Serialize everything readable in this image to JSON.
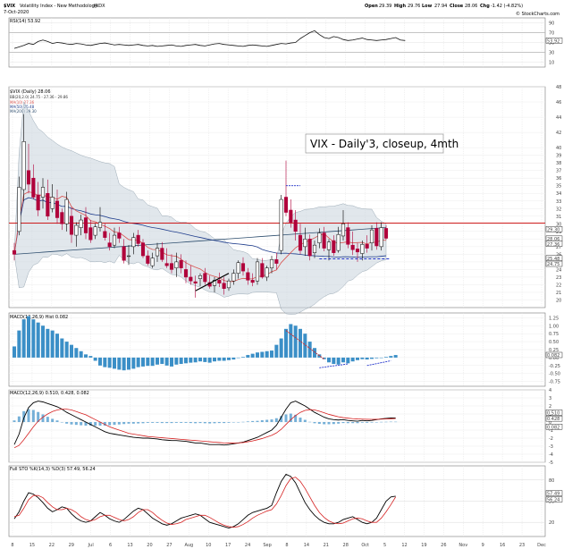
{
  "header": {
    "symbol": "$VIX",
    "name": "Volatility Index - New Methodology",
    "exchange": "INDX",
    "date": "7-Oct-2020",
    "open_label": "Open",
    "open": "29.39",
    "high_label": "High",
    "high": "29.76",
    "low_label": "Low",
    "low": "27.94",
    "close_label": "Close",
    "close": "28.06",
    "chg_label": "Chg",
    "chg": "-1.42 (-4.82%)",
    "copyright": "© StockCharts.com"
  },
  "rsi_panel": {
    "label": "RSI(14) 53.92",
    "ticks": [
      "90",
      "70",
      "50",
      "30",
      "10"
    ],
    "value_box": "53.92"
  },
  "price_panel": {
    "legend_title": "$VIX (Daily) 28.06",
    "legend_bb": "BB(20,2.0) 24.75 - 27.36 - 29.86",
    "legend_ma10": "MA(10) 27.36",
    "legend_ma50": "MA(50) 25.48",
    "legend_ma200": "MA(200) 29.30",
    "annotation": "VIX - Daily'3, closeup, 4mth",
    "price_boxes": [
      "29.30",
      "28.06",
      "27.36",
      "25.48",
      "24.75"
    ],
    "y_ticks": [
      "48",
      "46",
      "44",
      "42",
      "40",
      "39",
      "38",
      "37",
      "36",
      "35",
      "34",
      "33",
      "32",
      "31",
      "30",
      "29",
      "28",
      "27",
      "26",
      "25",
      "24",
      "23",
      "22",
      "21",
      "20"
    ]
  },
  "macd_hist_panel": {
    "label": "MACD(12,26,9) Hist 0.082",
    "ticks": [
      "1.25",
      "1.00",
      "0.75",
      "0.50",
      "0.25",
      "0.00",
      "-0.25",
      "-0.50",
      "-0.75"
    ],
    "value_box": "0.082"
  },
  "macd_panel": {
    "label": "MACD(12,26,9) 0.510, 0.428, 0.082",
    "ticks": [
      "4",
      "3",
      "2",
      "1",
      "0",
      "-1",
      "-2",
      "-3",
      "-4",
      "-5"
    ],
    "value_boxes": [
      "0.510",
      "0.428",
      "0.082"
    ]
  },
  "sto_panel": {
    "label": "Full STO %K(14,3) %D(3) 57.49, 56.24",
    "ticks": [
      "80",
      "50",
      "20"
    ],
    "value_boxes": [
      "57.49",
      "56.24"
    ]
  },
  "x_axis": {
    "labels": [
      "8",
      "15",
      "22",
      "29",
      "Jul",
      "6",
      "13",
      "20",
      "27",
      "Aug",
      "10",
      "17",
      "24",
      "Sep",
      "8",
      "14",
      "21",
      "28",
      "Oct",
      "5",
      "12",
      "19",
      "26",
      "Nov",
      "9",
      "16",
      "23",
      "Dec"
    ]
  },
  "colors": {
    "up": "#000000",
    "down": "#b0003a",
    "bollinger_fill": "#c9d4dd",
    "ma10": "#d9534f",
    "ma50": "#1e3c8c",
    "ma200": "#2f4f6f",
    "horizontal_line": "#cc0000",
    "macd_hist": "#3b8fc7",
    "macd_signal": "#d62222",
    "support_line": "#2233cc"
  },
  "chart_data": [
    {
      "type": "line",
      "name": "RSI(14)",
      "ylim": [
        0,
        100
      ],
      "values": [
        38,
        41,
        44,
        48,
        46,
        52,
        55,
        52,
        48,
        50,
        49,
        47,
        46,
        48,
        47,
        45,
        44,
        46,
        48,
        49,
        47,
        45,
        46,
        45,
        44,
        45,
        46,
        44,
        43,
        44,
        42,
        43,
        44,
        45,
        43,
        42,
        44,
        45,
        46,
        44,
        43,
        45,
        47,
        48,
        46,
        45,
        44,
        43,
        42,
        44,
        45,
        44,
        43,
        42,
        44,
        46,
        48,
        47,
        49,
        50,
        58,
        64,
        70,
        74,
        66,
        60,
        58,
        62,
        60,
        56,
        54,
        55,
        57,
        59,
        56,
        55,
        54,
        55,
        56,
        58,
        60,
        55,
        54
      ]
    },
    {
      "type": "candlestick",
      "name": "$VIX (Daily)",
      "ylim": [
        19,
        48
      ],
      "candles": [
        {
          "o": 26.5,
          "h": 27.5,
          "l": 25.2,
          "c": 26.0
        },
        {
          "o": 29.0,
          "h": 36.2,
          "l": 28.5,
          "c": 34.8
        },
        {
          "o": 34.5,
          "h": 44.4,
          "l": 33.0,
          "c": 40.8
        },
        {
          "o": 37.0,
          "h": 40.5,
          "l": 34.0,
          "c": 35.2
        },
        {
          "o": 36.0,
          "h": 37.8,
          "l": 33.2,
          "c": 33.5
        },
        {
          "o": 33.8,
          "h": 35.5,
          "l": 31.0,
          "c": 31.8
        },
        {
          "o": 33.5,
          "h": 36.0,
          "l": 32.0,
          "c": 34.8
        },
        {
          "o": 34.0,
          "h": 35.8,
          "l": 30.5,
          "c": 31.0
        },
        {
          "o": 32.0,
          "h": 35.2,
          "l": 31.5,
          "c": 33.5
        },
        {
          "o": 33.0,
          "h": 34.5,
          "l": 30.0,
          "c": 30.8
        },
        {
          "o": 31.5,
          "h": 32.0,
          "l": 29.2,
          "c": 30.0
        },
        {
          "o": 30.0,
          "h": 34.2,
          "l": 29.0,
          "c": 33.2
        },
        {
          "o": 31.0,
          "h": 32.2,
          "l": 27.5,
          "c": 28.6
        },
        {
          "o": 28.5,
          "h": 30.2,
          "l": 27.0,
          "c": 29.8
        },
        {
          "o": 29.5,
          "h": 31.2,
          "l": 28.5,
          "c": 30.5
        },
        {
          "o": 30.8,
          "h": 32.2,
          "l": 28.0,
          "c": 28.8
        },
        {
          "o": 29.5,
          "h": 30.5,
          "l": 27.5,
          "c": 27.9
        },
        {
          "o": 28.5,
          "h": 30.0,
          "l": 28.0,
          "c": 29.6
        },
        {
          "o": 29.5,
          "h": 32.2,
          "l": 29.0,
          "c": 30.2
        },
        {
          "o": 29.0,
          "h": 30.0,
          "l": 27.8,
          "c": 28.2
        },
        {
          "o": 27.5,
          "h": 28.8,
          "l": 26.5,
          "c": 27.0
        },
        {
          "o": 27.2,
          "h": 29.5,
          "l": 26.8,
          "c": 28.5
        },
        {
          "o": 28.8,
          "h": 29.6,
          "l": 27.5,
          "c": 28.1
        },
        {
          "o": 27.0,
          "h": 28.0,
          "l": 24.8,
          "c": 25.2
        },
        {
          "o": 25.8,
          "h": 27.2,
          "l": 24.6,
          "c": 25.8
        },
        {
          "o": 27.0,
          "h": 28.8,
          "l": 26.0,
          "c": 28.2
        },
        {
          "o": 28.5,
          "h": 29.2,
          "l": 27.0,
          "c": 27.4
        },
        {
          "o": 27.5,
          "h": 28.0,
          "l": 25.5,
          "c": 25.8
        },
        {
          "o": 25.8,
          "h": 26.5,
          "l": 24.5,
          "c": 24.8
        },
        {
          "o": 24.5,
          "h": 26.2,
          "l": 24.2,
          "c": 25.5
        },
        {
          "o": 25.8,
          "h": 27.5,
          "l": 25.0,
          "c": 26.8
        },
        {
          "o": 26.8,
          "h": 27.6,
          "l": 25.0,
          "c": 25.3
        },
        {
          "o": 24.8,
          "h": 26.8,
          "l": 24.2,
          "c": 24.5
        },
        {
          "o": 24.8,
          "h": 26.0,
          "l": 23.5,
          "c": 24.0
        },
        {
          "o": 24.2,
          "h": 26.2,
          "l": 23.0,
          "c": 25.0
        },
        {
          "o": 25.2,
          "h": 26.0,
          "l": 23.5,
          "c": 24.2
        },
        {
          "o": 24.0,
          "h": 25.2,
          "l": 22.2,
          "c": 23.0
        },
        {
          "o": 23.0,
          "h": 24.5,
          "l": 22.0,
          "c": 22.5
        },
        {
          "o": 22.4,
          "h": 23.2,
          "l": 20.3,
          "c": 22.2
        },
        {
          "o": 22.8,
          "h": 23.5,
          "l": 21.8,
          "c": 23.2
        },
        {
          "o": 23.5,
          "h": 24.2,
          "l": 22.0,
          "c": 22.4
        },
        {
          "o": 22.3,
          "h": 23.2,
          "l": 21.5,
          "c": 21.8
        },
        {
          "o": 21.9,
          "h": 23.0,
          "l": 21.0,
          "c": 22.6
        },
        {
          "o": 22.6,
          "h": 23.6,
          "l": 21.7,
          "c": 22.2
        },
        {
          "o": 22.2,
          "h": 23.0,
          "l": 20.7,
          "c": 21.5
        },
        {
          "o": 21.6,
          "h": 22.8,
          "l": 21.2,
          "c": 22.5
        },
        {
          "o": 22.5,
          "h": 24.0,
          "l": 22.0,
          "c": 23.5
        },
        {
          "o": 23.5,
          "h": 25.2,
          "l": 22.8,
          "c": 24.9
        },
        {
          "o": 24.8,
          "h": 25.6,
          "l": 23.2,
          "c": 23.8
        },
        {
          "o": 23.6,
          "h": 24.2,
          "l": 22.0,
          "c": 22.6
        },
        {
          "o": 22.6,
          "h": 23.5,
          "l": 21.8,
          "c": 22.3
        },
        {
          "o": 22.5,
          "h": 25.5,
          "l": 22.0,
          "c": 25.0
        },
        {
          "o": 24.8,
          "h": 25.5,
          "l": 22.8,
          "c": 23.0
        },
        {
          "o": 23.0,
          "h": 24.5,
          "l": 22.5,
          "c": 24.2
        },
        {
          "o": 24.2,
          "h": 25.8,
          "l": 23.5,
          "c": 25.3
        },
        {
          "o": 25.3,
          "h": 26.2,
          "l": 24.0,
          "c": 24.8
        },
        {
          "o": 26.5,
          "h": 33.8,
          "l": 26.0,
          "c": 33.2
        },
        {
          "o": 33.5,
          "h": 38.3,
          "l": 31.0,
          "c": 31.5
        },
        {
          "o": 31.8,
          "h": 33.2,
          "l": 29.5,
          "c": 30.2
        },
        {
          "o": 30.5,
          "h": 31.8,
          "l": 27.8,
          "c": 29.0
        },
        {
          "o": 28.5,
          "h": 30.0,
          "l": 26.0,
          "c": 26.5
        },
        {
          "o": 27.0,
          "h": 29.5,
          "l": 25.8,
          "c": 28.0
        },
        {
          "o": 28.0,
          "h": 28.6,
          "l": 25.2,
          "c": 25.8
        },
        {
          "o": 26.2,
          "h": 27.8,
          "l": 25.5,
          "c": 27.2
        },
        {
          "o": 27.5,
          "h": 29.4,
          "l": 26.8,
          "c": 28.8
        },
        {
          "o": 28.8,
          "h": 29.6,
          "l": 26.4,
          "c": 26.8
        },
        {
          "o": 26.6,
          "h": 28.0,
          "l": 25.2,
          "c": 27.6
        },
        {
          "o": 27.8,
          "h": 28.5,
          "l": 25.8,
          "c": 26.2
        },
        {
          "o": 26.5,
          "h": 29.6,
          "l": 26.2,
          "c": 28.6
        },
        {
          "o": 28.4,
          "h": 31.8,
          "l": 27.8,
          "c": 30.0
        },
        {
          "o": 29.5,
          "h": 30.2,
          "l": 26.8,
          "c": 27.3
        },
        {
          "o": 27.2,
          "h": 29.0,
          "l": 25.9,
          "c": 26.6
        },
        {
          "o": 26.7,
          "h": 27.5,
          "l": 25.0,
          "c": 26.3
        },
        {
          "o": 26.1,
          "h": 27.8,
          "l": 25.2,
          "c": 27.3
        },
        {
          "o": 27.3,
          "h": 28.5,
          "l": 26.2,
          "c": 26.8
        },
        {
          "o": 27.5,
          "h": 29.8,
          "l": 26.5,
          "c": 29.2
        },
        {
          "o": 29.4,
          "h": 30.2,
          "l": 26.6,
          "c": 27.1
        },
        {
          "o": 27.0,
          "h": 30.2,
          "l": 26.5,
          "c": 29.5
        },
        {
          "o": 29.4,
          "h": 29.8,
          "l": 27.9,
          "c": 28.1
        }
      ],
      "horizontal_line": 30.1,
      "support_line": 25.4
    },
    {
      "type": "bar",
      "name": "MACD(12,26,9) Hist",
      "ylim": [
        -0.9,
        1.4
      ],
      "values": [
        0.35,
        0.85,
        1.2,
        1.3,
        1.2,
        1.1,
        1.0,
        0.9,
        0.85,
        0.75,
        0.6,
        0.5,
        0.4,
        0.3,
        0.2,
        0.1,
        0.05,
        -0.1,
        -0.25,
        -0.3,
        -0.32,
        -0.35,
        -0.38,
        -0.4,
        -0.38,
        -0.35,
        -0.3,
        -0.28,
        -0.26,
        -0.26,
        -0.22,
        -0.2,
        -0.25,
        -0.28,
        -0.22,
        -0.2,
        -0.18,
        -0.16,
        -0.15,
        -0.12,
        -0.14,
        -0.16,
        -0.12,
        -0.1,
        -0.1,
        -0.08,
        -0.06,
        0.0,
        0.02,
        0.08,
        0.12,
        0.16,
        0.18,
        0.2,
        0.22,
        0.4,
        0.6,
        0.9,
        1.05,
        1.0,
        0.9,
        0.75,
        0.5,
        0.3,
        0.1,
        -0.05,
        -0.15,
        -0.2,
        -0.22,
        -0.15,
        -0.18,
        -0.12,
        -0.08,
        -0.05,
        -0.06,
        -0.04,
        -0.02,
        0.0,
        0.02,
        0.05,
        0.08
      ]
    },
    {
      "type": "line",
      "name": "MACD(12,26,9)",
      "ylim": [
        -5,
        4
      ],
      "series": [
        {
          "name": "MACD",
          "values": [
            -2.8,
            -1.5,
            0.5,
            1.8,
            2.4,
            2.6,
            2.5,
            2.3,
            2.1,
            1.9,
            1.6,
            1.2,
            0.9,
            0.6,
            0.3,
            0.0,
            -0.3,
            -0.6,
            -0.9,
            -1.2,
            -1.4,
            -1.5,
            -1.6,
            -1.7,
            -1.8,
            -1.9,
            -1.95,
            -2.0,
            -2.0,
            -2.05,
            -2.1,
            -2.2,
            -2.25,
            -2.3,
            -2.3,
            -2.35,
            -2.4,
            -2.5,
            -2.6,
            -2.6,
            -2.7,
            -2.8,
            -2.8,
            -2.8,
            -2.85,
            -2.8,
            -2.7,
            -2.6,
            -2.5,
            -2.3,
            -2.1,
            -1.9,
            -1.6,
            -1.3,
            -1.0,
            -0.4,
            0.6,
            1.6,
            2.4,
            2.6,
            2.3,
            2.0,
            1.6,
            1.2,
            0.9,
            0.6,
            0.4,
            0.3,
            0.25,
            0.3,
            0.2,
            0.15,
            0.1,
            0.2,
            0.15,
            0.2,
            0.3,
            0.4,
            0.45,
            0.5,
            0.51
          ]
        },
        {
          "name": "Signal",
          "values": [
            -3.2,
            -2.9,
            -2.2,
            -1.4,
            -0.6,
            0.1,
            0.6,
            1.0,
            1.3,
            1.5,
            1.6,
            1.6,
            1.5,
            1.3,
            1.1,
            0.9,
            0.6,
            0.3,
            0.0,
            -0.3,
            -0.6,
            -0.8,
            -1.0,
            -1.2,
            -1.4,
            -1.5,
            -1.6,
            -1.7,
            -1.8,
            -1.85,
            -1.9,
            -1.95,
            -2.0,
            -2.05,
            -2.1,
            -2.15,
            -2.2,
            -2.25,
            -2.3,
            -2.35,
            -2.4,
            -2.45,
            -2.5,
            -2.55,
            -2.6,
            -2.62,
            -2.62,
            -2.6,
            -2.55,
            -2.45,
            -2.35,
            -2.2,
            -2.05,
            -1.85,
            -1.65,
            -1.35,
            -0.9,
            -0.3,
            0.3,
            0.8,
            1.2,
            1.45,
            1.55,
            1.5,
            1.35,
            1.15,
            0.95,
            0.8,
            0.65,
            0.55,
            0.48,
            0.42,
            0.38,
            0.36,
            0.34,
            0.33,
            0.34,
            0.36,
            0.39,
            0.41,
            0.428
          ]
        }
      ]
    },
    {
      "type": "line",
      "name": "Full STO %K(14,3) %D(3)",
      "ylim": [
        0,
        100
      ],
      "series": [
        {
          "name": "%K",
          "values": [
            25,
            35,
            50,
            62,
            60,
            55,
            48,
            40,
            35,
            38,
            42,
            40,
            32,
            26,
            22,
            20,
            22,
            28,
            34,
            30,
            25,
            22,
            20,
            24,
            30,
            36,
            40,
            38,
            32,
            26,
            22,
            18,
            16,
            18,
            22,
            26,
            28,
            30,
            32,
            30,
            25,
            20,
            18,
            16,
            14,
            12,
            14,
            18,
            24,
            30,
            34,
            36,
            38,
            40,
            44,
            62,
            78,
            88,
            85,
            76,
            62,
            48,
            38,
            30,
            24,
            20,
            18,
            18,
            20,
            24,
            26,
            28,
            24,
            20,
            18,
            20,
            26,
            38,
            50,
            56,
            57
          ]
        },
        {
          "name": "%D",
          "values": [
            28,
            30,
            40,
            52,
            58,
            58,
            55,
            48,
            42,
            38,
            38,
            40,
            38,
            34,
            28,
            24,
            22,
            24,
            28,
            30,
            30,
            27,
            24,
            22,
            24,
            28,
            34,
            38,
            38,
            34,
            28,
            23,
            19,
            17,
            18,
            20,
            24,
            26,
            28,
            30,
            30,
            27,
            23,
            19,
            16,
            14,
            13,
            14,
            17,
            21,
            26,
            30,
            33,
            36,
            38,
            46,
            58,
            72,
            82,
            84,
            78,
            68,
            56,
            44,
            34,
            27,
            22,
            19,
            18,
            19,
            22,
            25,
            26,
            25,
            22,
            20,
            20,
            26,
            35,
            45,
            56
          ]
        }
      ]
    }
  ]
}
